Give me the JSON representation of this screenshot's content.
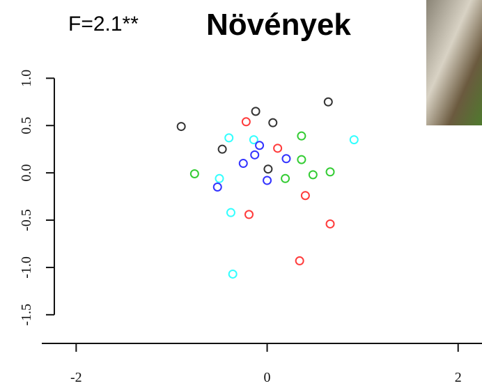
{
  "chart_data": {
    "type": "scatter",
    "title": "Növények",
    "subtitle": "F=2.1**",
    "xlim": [
      -2.36,
      2.25
    ],
    "ylim": [
      -1.7,
      1.4
    ],
    "xticks": [
      -2,
      0,
      2
    ],
    "yticks": [
      {
        "value": 1,
        "label": "1.0"
      },
      0.5,
      {
        "value": 0,
        "label": "0.0"
      },
      -0.5,
      {
        "value": -1,
        "label": "-1.0"
      },
      -1.5
    ],
    "series": [
      {
        "color": "#333333",
        "x": [
          -0.9,
          -0.12,
          0.64,
          0.06,
          -0.47,
          0.01
        ],
        "y": [
          0.49,
          0.65,
          0.75,
          0.53,
          0.25,
          0.04
        ]
      },
      {
        "color": "#ff3b3b",
        "x": [
          -0.22,
          0.11,
          0.4,
          -0.19,
          0.66,
          0.34
        ],
        "y": [
          0.54,
          0.26,
          -0.24,
          -0.44,
          -0.54,
          -0.93
        ]
      },
      {
        "color": "#33cc33",
        "x": [
          -0.76,
          0.36,
          0.36,
          0.48,
          0.66,
          0.19
        ],
        "y": [
          -0.01,
          0.39,
          0.14,
          -0.02,
          0.01,
          -0.06
        ]
      },
      {
        "color": "#33ffff",
        "x": [
          -0.4,
          -0.14,
          0.91,
          -0.5,
          -0.38,
          -0.36
        ],
        "y": [
          0.37,
          0.35,
          0.35,
          -0.06,
          -0.42,
          -1.07
        ]
      },
      {
        "color": "#3333ff",
        "x": [
          -0.08,
          -0.13,
          -0.25,
          0.2,
          0.0,
          -0.52
        ],
        "y": [
          0.29,
          0.19,
          0.1,
          0.15,
          -0.08,
          -0.15
        ]
      }
    ]
  }
}
